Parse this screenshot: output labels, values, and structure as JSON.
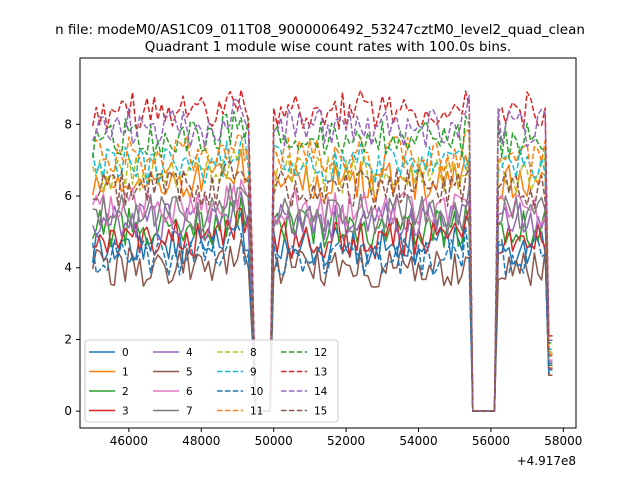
{
  "suptitle": "n file: modeM0/AS1C09_011T08_9000006492_53247cztM0_level2_quad_clean",
  "chart_data": {
    "type": "line",
    "title": "Quadrant 1 module wise count rates with 100.0s bins.",
    "xlabel": "",
    "ylabel": "",
    "x_offset_label": "+4.917e8",
    "xlim": [
      44650,
      58350
    ],
    "ylim": [
      -0.47,
      9.85
    ],
    "x_ticks": [
      46000,
      48000,
      50000,
      52000,
      54000,
      56000,
      58000
    ],
    "x_tick_labels": [
      "46000",
      "48000",
      "50000",
      "52000",
      "54000",
      "56000",
      "58000"
    ],
    "y_ticks": [
      0,
      2,
      4,
      6,
      8
    ],
    "y_tick_labels": [
      "0",
      "2",
      "4",
      "6",
      "8"
    ],
    "x_range": [
      45000,
      57700
    ],
    "x_step": 100,
    "gaps": [
      [
        49500,
        49900
      ],
      [
        55500,
        56100
      ]
    ],
    "legend": {
      "location": "lower-left",
      "columns": 4
    },
    "series": [
      {
        "name": "0",
        "color": "#1f77b4",
        "style": "solid",
        "mean": 4.6
      },
      {
        "name": "1",
        "color": "#ff7f0e",
        "style": "solid",
        "mean": 6.4
      },
      {
        "name": "2",
        "color": "#2ca02c",
        "style": "solid",
        "mean": 5.1
      },
      {
        "name": "3",
        "color": "#d62728",
        "style": "solid",
        "mean": 4.8
      },
      {
        "name": "4",
        "color": "#9467bd",
        "style": "solid",
        "mean": 5.3
      },
      {
        "name": "5",
        "color": "#8c564b",
        "style": "solid",
        "mean": 4.0
      },
      {
        "name": "6",
        "color": "#e377c2",
        "style": "solid",
        "mean": 5.7
      },
      {
        "name": "7",
        "color": "#7f7f7f",
        "style": "solid",
        "mean": 5.5
      },
      {
        "name": "8",
        "color": "#bcbd22",
        "style": "dashed",
        "mean": 6.6
      },
      {
        "name": "9",
        "color": "#17becf",
        "style": "dashed",
        "mean": 6.9
      },
      {
        "name": "10",
        "color": "#1f77b4",
        "style": "dashed",
        "mean": 4.3
      },
      {
        "name": "11",
        "color": "#ff7f0e",
        "style": "dashed",
        "mean": 7.1
      },
      {
        "name": "12",
        "color": "#2ca02c",
        "style": "dashed",
        "mean": 7.6
      },
      {
        "name": "13",
        "color": "#d62728",
        "style": "dashed",
        "mean": 8.4
      },
      {
        "name": "14",
        "color": "#9467bd",
        "style": "dashed",
        "mean": 7.9
      },
      {
        "name": "15",
        "color": "#8c564b",
        "style": "dashed",
        "mean": 6.2
      }
    ]
  }
}
